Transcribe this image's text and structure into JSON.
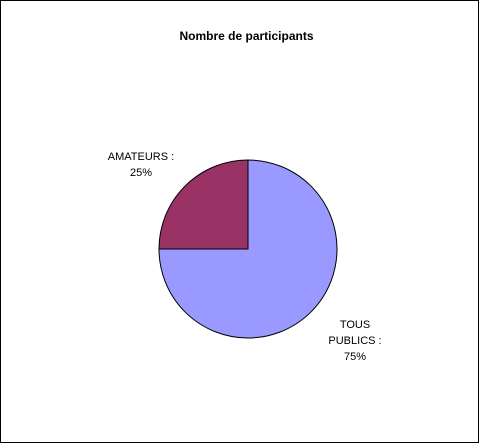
{
  "chart_data": {
    "type": "pie",
    "title": "Nombre de participants",
    "slices": [
      {
        "category": "TOUS PUBLICS",
        "value": 75,
        "percent_label": "75%",
        "label_lines": [
          "TOUS",
          "PUBLICS :",
          "75%"
        ],
        "color": "#9999ff"
      },
      {
        "category": "AMATEURS",
        "value": 25,
        "percent_label": "25%",
        "label_lines": [
          "AMATEURS :",
          "25%"
        ],
        "color": "#993366"
      }
    ],
    "start_angle": "12 o'clock",
    "direction": "clockwise",
    "legend": "none"
  }
}
